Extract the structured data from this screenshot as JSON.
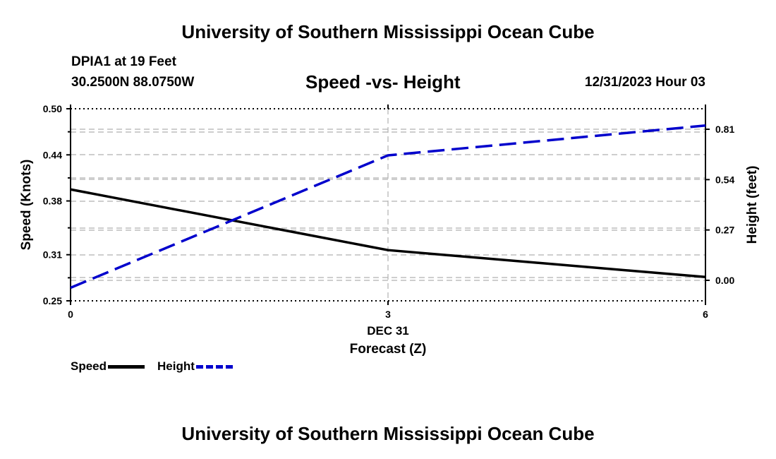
{
  "header": {
    "title": "University of Southern Mississippi Ocean Cube",
    "station": "DPIA1 at 19 Feet",
    "coords": "30.2500N  88.0750W",
    "subtitle": "Speed -vs- Height",
    "datetime": "12/31/2023 Hour 03"
  },
  "footer": {
    "title": "University of Southern Mississippi Ocean Cube"
  },
  "legend": {
    "speed_label": "Speed",
    "height_label": "Height"
  },
  "colors": {
    "speed": "#000000",
    "height": "#0000cc",
    "grid": "#b0b0b0"
  },
  "chart_data": {
    "type": "line",
    "title": "Speed -vs- Height",
    "xlabel": "Forecast (Z)",
    "xsublabel": "DEC 31",
    "ylabel": "Speed (Knots)",
    "y2label": "Height (feet)",
    "x": [
      0,
      3,
      6
    ],
    "xticks": [
      0,
      3,
      6
    ],
    "xtick_labels": [
      "0",
      "3",
      "6"
    ],
    "xlim": [
      0,
      6
    ],
    "ylim": [
      0.25,
      0.5
    ],
    "yticks": [
      0.25,
      0.31,
      0.38,
      0.44,
      0.5
    ],
    "ytick_labels": [
      "0.25",
      "0.31",
      "0.38",
      "0.44",
      "0.50"
    ],
    "y2lim": [
      -0.11,
      0.92
    ],
    "y2ticks": [
      0.0,
      0.27,
      0.54,
      0.81
    ],
    "y2tick_labels": [
      "0.00",
      "0.27",
      "0.54",
      "0.81"
    ],
    "series": [
      {
        "name": "Speed",
        "axis": "left",
        "style": "solid",
        "x": [
          0,
          3,
          6
        ],
        "values": [
          0.395,
          0.316,
          0.281
        ]
      },
      {
        "name": "Height",
        "axis": "right",
        "style": "dashed",
        "x": [
          0,
          3,
          6
        ],
        "values": [
          -0.04,
          0.67,
          0.83
        ]
      }
    ]
  }
}
